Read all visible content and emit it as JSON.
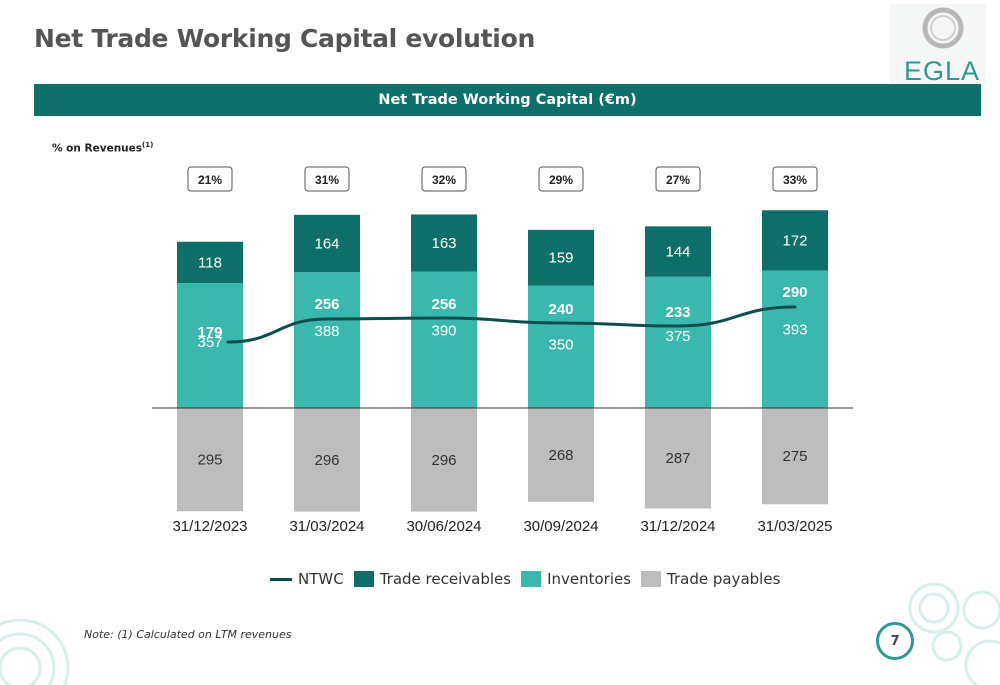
{
  "page": {
    "title": "Net Trade Working Capital evolution",
    "page_number": "7",
    "note": "Note: (1) Calculated on LTM revenues"
  },
  "logo": {
    "text": "EGLA"
  },
  "banner": {
    "title": "Net Trade Working Capital (€m)"
  },
  "pct_label": {
    "text": "% on Revenues",
    "sup": "(1)"
  },
  "colors": {
    "trade_receivables": "#0e6e68",
    "inventories": "#3ab8ad",
    "trade_payables": "#bdbdbd",
    "ntwc_line": "#0e4d4a",
    "banner": "#0e7068"
  },
  "legend": [
    {
      "label": "NTWC",
      "kind": "line"
    },
    {
      "label": "Trade receivables",
      "kind": "swatch",
      "color": "#0e6e68"
    },
    {
      "label": "Inventories",
      "kind": "swatch",
      "color": "#3ab8ad"
    },
    {
      "label": "Trade payables",
      "kind": "swatch",
      "color": "#bdbdbd"
    }
  ],
  "chart_data": {
    "type": "bar",
    "stacked": true,
    "title": "Net Trade Working Capital (€m)",
    "categories": [
      "31/12/2023",
      "31/03/2024",
      "30/06/2024",
      "30/09/2024",
      "31/12/2024",
      "31/03/2025"
    ],
    "series": [
      {
        "name": "Inventories",
        "values": [
          357,
          388,
          390,
          350,
          375,
          393
        ]
      },
      {
        "name": "Trade receivables",
        "values": [
          118,
          164,
          163,
          159,
          144,
          172
        ]
      },
      {
        "name": "Trade payables",
        "values": [
          295,
          296,
          296,
          268,
          287,
          275
        ]
      },
      {
        "name": "NTWC",
        "type": "line",
        "values": [
          179,
          256,
          256,
          240,
          233,
          290
        ]
      }
    ],
    "pct_on_revenues": [
      "21%",
      "31%",
      "32%",
      "29%",
      "27%",
      "33%"
    ],
    "grid": false,
    "legend_position": "bottom"
  }
}
